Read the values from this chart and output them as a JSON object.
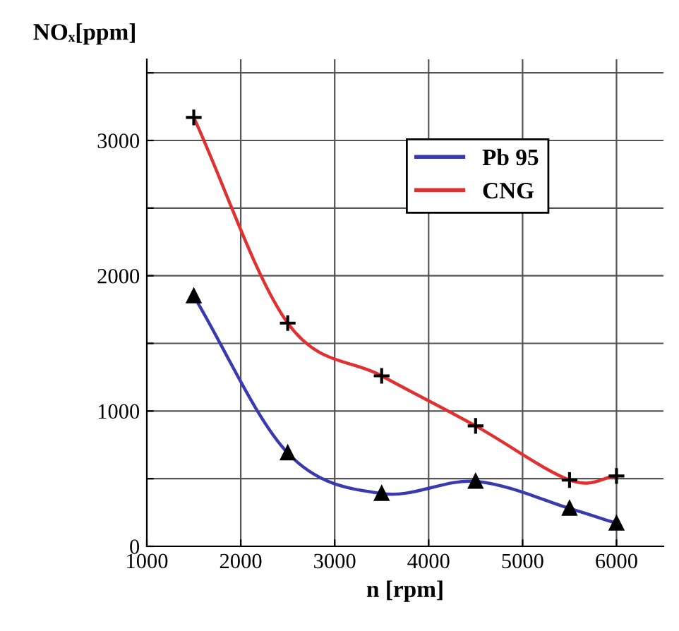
{
  "chart_data": {
    "type": "line",
    "xlabel": "n [rpm]",
    "ylabel": "NOₓ[ppm]",
    "xlim": [
      1000,
      6500
    ],
    "xticks": [
      1000,
      2000,
      3000,
      4000,
      5000,
      6000
    ],
    "ylim": [
      0,
      3600
    ],
    "yticks": [
      0,
      {
        "value": 500,
        "label": null
      },
      1000,
      {
        "value": 1500,
        "label": null
      },
      2000,
      {
        "value": 2500,
        "label": null
      },
      3000,
      {
        "value": 3500,
        "label": null
      }
    ],
    "grid": true,
    "legend": "top right",
    "x": [
      1500,
      2500,
      3500,
      4500,
      5500,
      6000
    ],
    "series": [
      {
        "name": "Pb 95",
        "color": "#3a3ab0",
        "marker": "triangle",
        "values": [
          1850,
          690,
          390,
          480,
          280,
          170
        ]
      },
      {
        "name": "CNG",
        "color": "#e03030",
        "marker": "cross",
        "values": [
          3170,
          1650,
          1260,
          890,
          490,
          520
        ]
      }
    ]
  }
}
